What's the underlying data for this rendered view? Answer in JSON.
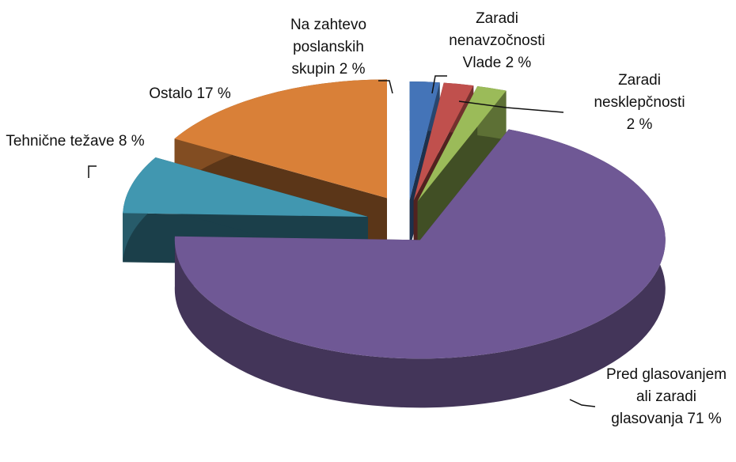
{
  "chart_data": {
    "type": "pie3d",
    "categories": [
      "Na zahtevo poslanskih skupin",
      "Zaradi nenavzočnosti Vlade",
      "Zaradi nesklepčnosti",
      "Pred glasovanjem ali zaradi glasovanja",
      "Tehnične težave",
      "Ostalo"
    ],
    "values": [
      2,
      2,
      2,
      71,
      8,
      17
    ],
    "value_labels": [
      "2 %",
      "2 %",
      "2 %",
      "71 %",
      "8 %",
      "17 %"
    ],
    "colors": [
      "#4474b8",
      "#c0504d",
      "#9bbb59",
      "#6f5895",
      "#4197b0",
      "#d98038"
    ]
  }
}
